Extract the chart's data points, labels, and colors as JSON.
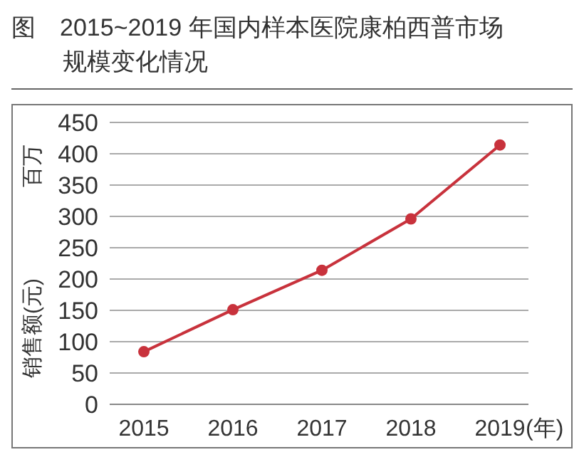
{
  "chart_data": {
    "type": "line",
    "title": "图　2015~2019 年国内样本医院康柏西普市场规模变化情况",
    "categories": [
      "2015",
      "2016",
      "2017",
      "2018",
      "2019"
    ],
    "series": [
      {
        "color": "#c8323c",
        "values": [
          84,
          151,
          214,
          296,
          414
        ]
      }
    ],
    "xlabel": "(年)",
    "ylabel": "销售额(元)",
    "annotations": [
      "百万"
    ],
    "ylim": [
      0,
      450
    ],
    "yticks": [
      0,
      50,
      100,
      150,
      200,
      250,
      300,
      350,
      400,
      450
    ],
    "grid": "y",
    "marker": "circle",
    "line_style": "solid",
    "legend": false
  }
}
